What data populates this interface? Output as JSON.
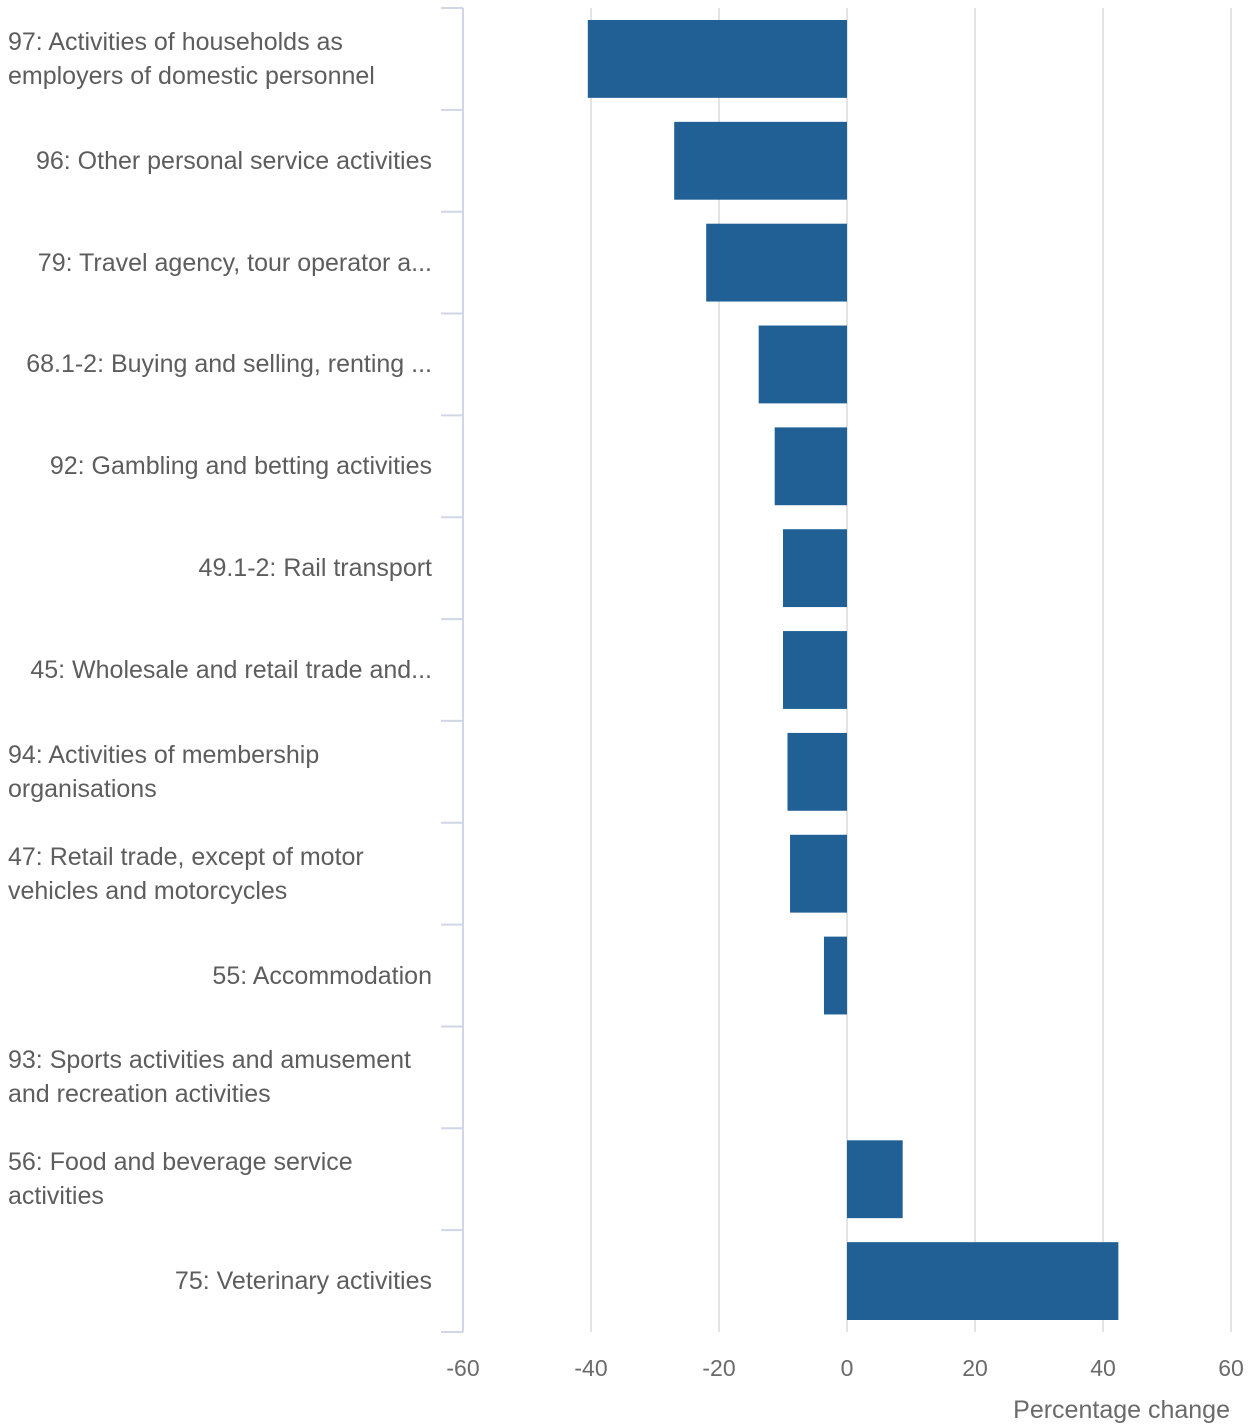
{
  "chart_data": {
    "type": "bar",
    "orientation": "horizontal",
    "categories": [
      "97: Activities of households as employers of domestic personnel",
      "96: Other personal service activities",
      "79: Travel agency, tour operator a...",
      "68.1-2: Buying and selling, renting ...",
      "92: Gambling and betting activities",
      "49.1-2: Rail transport",
      "45: Wholesale and retail trade and...",
      "94: Activities of membership organisations",
      "47: Retail trade, except of motor vehicles and motorcycles",
      "55: Accommodation",
      "93: Sports activities and amusement and recreation activities",
      "56: Food and beverage service activities",
      "75: Veterinary activities"
    ],
    "values": [
      -40.5,
      -27.0,
      -22.0,
      -13.8,
      -11.3,
      -10.0,
      -10.0,
      -9.3,
      -8.9,
      -3.6,
      0,
      8.7,
      42.4
    ],
    "xlabel": "Percentage change",
    "ylabel": "",
    "xlim": [
      -60,
      60
    ],
    "xticks": [
      "-60",
      "-40",
      "-20",
      "0",
      "20",
      "40",
      "60"
    ],
    "grid": "vertical",
    "bar_color": "#206095"
  }
}
